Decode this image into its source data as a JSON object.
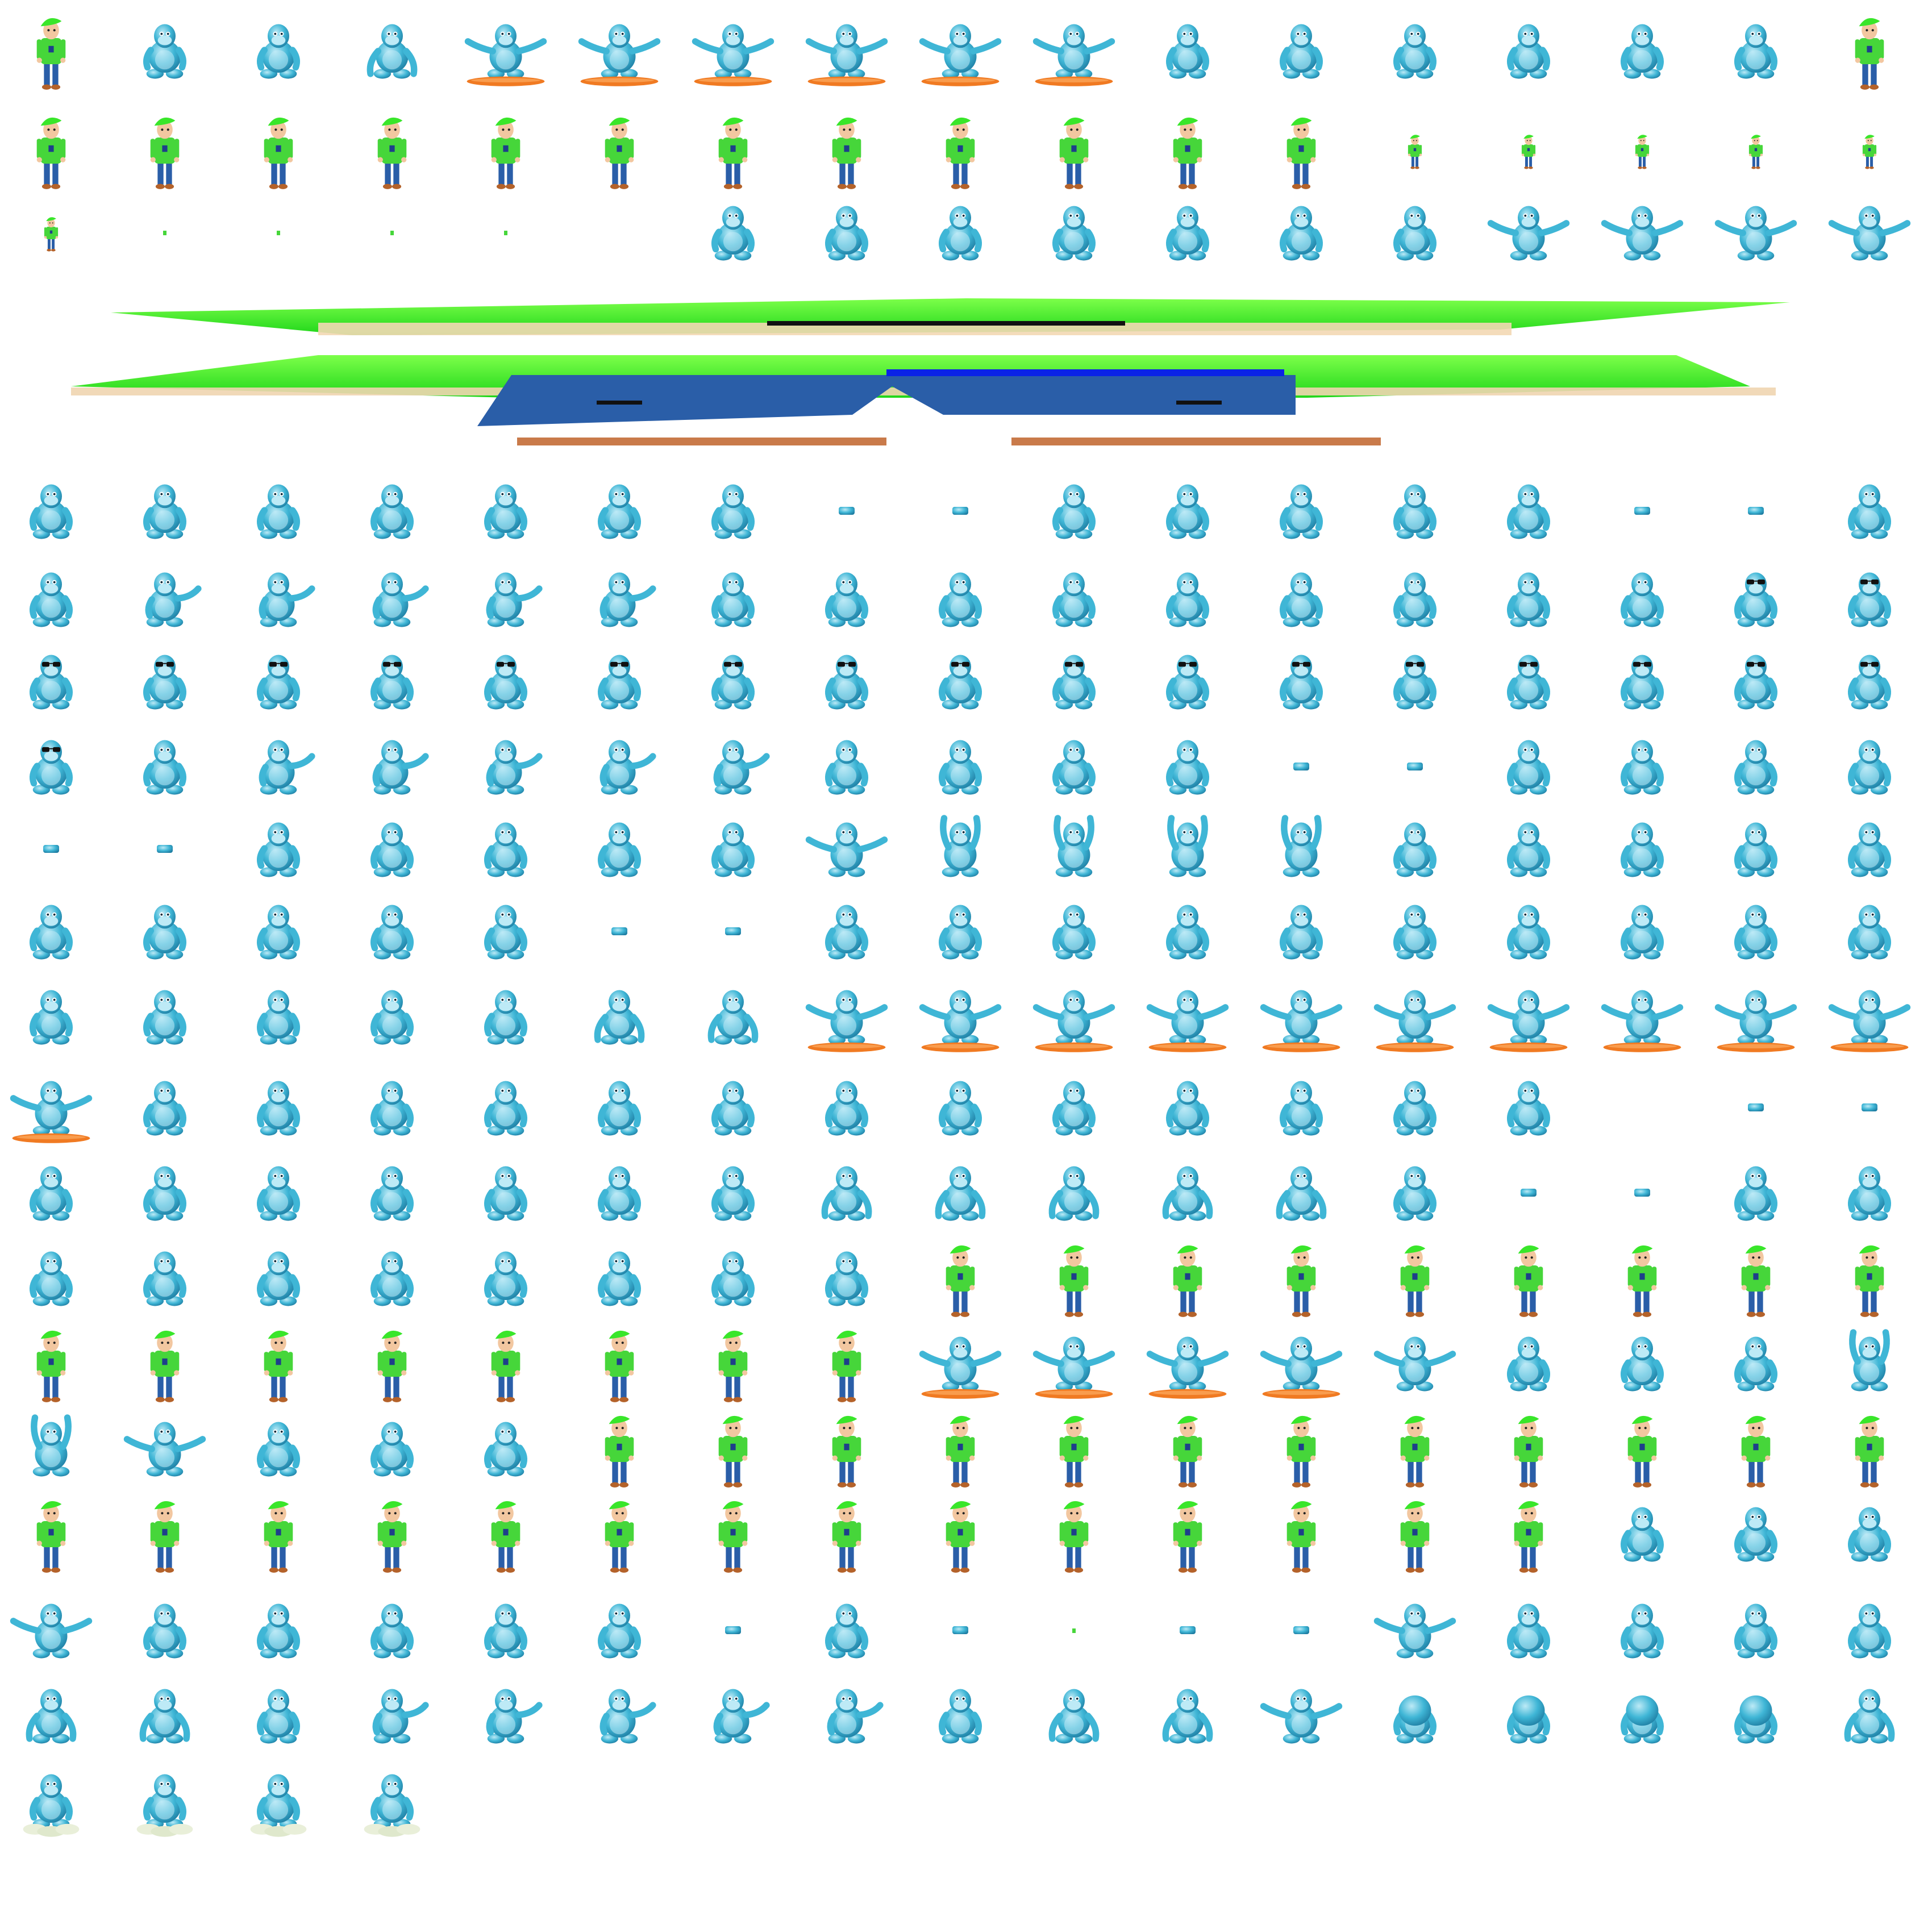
{
  "sheet": {
    "title": "",
    "columns": 17,
    "background": "#ffffff",
    "colors": {
      "ape_body": "#3fb6d6",
      "ape_dark": "#1f7ea3",
      "ape_light": "#bdeaf6",
      "boy_hair": "#39e62a",
      "boy_shirt": "#46d63a",
      "boy_jeans": "#2a5ea8",
      "boy_skin": "#f2c7a0",
      "board": "#f07a22"
    },
    "rows": [
      [
        "boy",
        "ape",
        "ape",
        "ape-crouch",
        "ape-board",
        "ape-board",
        "ape-board",
        "ape-board",
        "ape-board",
        "ape-board",
        "ape",
        "ape",
        "ape",
        "ape",
        "ape",
        "ape",
        "boy"
      ],
      [
        "boy",
        "boy",
        "boy",
        "boy",
        "boy",
        "boy",
        "boy",
        "boy",
        "boy",
        "boy",
        "boy",
        "boy",
        "boy-s",
        "boy-s",
        "boy-s",
        "boy-s",
        "boy-s"
      ],
      [
        "boy-s",
        "dot",
        "dot",
        "dot",
        "dot",
        "",
        "ape",
        "ape",
        "ape",
        "ape",
        "ape",
        "ape",
        "ape",
        "ape-arms",
        "ape-arms",
        "ape-arms",
        "ape-arms"
      ],
      [
        "glitch"
      ],
      [
        "ape",
        "ape",
        "ape",
        "ape",
        "ape",
        "ape",
        "ape",
        "frag",
        "frag",
        "ape",
        "ape",
        "ape",
        "ape",
        "ape",
        "frag",
        "frag",
        "ape"
      ],
      [
        "ape",
        "ape-wave",
        "ape-wave",
        "ape-wave",
        "ape-wave",
        "ape-wave",
        "ape",
        "ape",
        "ape",
        "ape",
        "ape",
        "ape",
        "ape",
        "ape",
        "ape",
        "ape-shades",
        "ape-shades"
      ],
      [
        "ape-shades",
        "ape-shades",
        "ape-shades",
        "ape-shades",
        "ape-shades",
        "ape-shades",
        "ape-shades",
        "ape-shades",
        "ape-shades",
        "ape-shades",
        "ape-shades",
        "ape-shades",
        "ape-shades",
        "ape-shades",
        "ape-shades",
        "ape-shades",
        "ape-shades"
      ],
      [
        "ape-shades",
        "ape",
        "ape-wave",
        "ape-wave",
        "ape-wave",
        "ape-wave",
        "ape-wave",
        "ape",
        "ape",
        "ape",
        "ape",
        "frag",
        "frag",
        "ape",
        "ape",
        "ape",
        "ape"
      ],
      [
        "frag",
        "frag",
        "ape",
        "ape",
        "ape",
        "ape",
        "ape",
        "ape-arms",
        "ape-up",
        "ape-up",
        "ape-up",
        "ape-up",
        "ape",
        "ape",
        "ape",
        "ape",
        "ape"
      ],
      [
        "ape",
        "ape",
        "ape",
        "ape",
        "ape",
        "frag",
        "frag",
        "ape",
        "ape",
        "ape",
        "ape",
        "ape",
        "ape",
        "ape",
        "ape",
        "ape",
        "ape"
      ],
      [
        "ape",
        "ape",
        "ape",
        "ape",
        "ape",
        "ape-crouch",
        "ape-crouch",
        "ape-board",
        "ape-board",
        "ape-board",
        "ape-board",
        "ape-board",
        "ape-board",
        "ape-board",
        "ape-board",
        "ape-board",
        "ape-board"
      ],
      [
        "ape-board",
        "ape",
        "ape",
        "ape",
        "ape",
        "ape",
        "ape",
        "ape",
        "ape",
        "ape",
        "ape",
        "ape",
        "ape",
        "ape",
        "",
        "frag",
        "frag"
      ],
      [
        "ape",
        "ape",
        "ape",
        "ape",
        "ape",
        "ape",
        "ape",
        "ape-crouch",
        "ape-crouch",
        "ape-crouch",
        "ape-crouch",
        "ape-crouch",
        "ape",
        "frag",
        "frag",
        "ape",
        "ape"
      ],
      [
        "ape",
        "ape",
        "ape",
        "ape",
        "ape",
        "ape",
        "ape",
        "ape",
        "boy",
        "boy",
        "boy",
        "boy",
        "boy",
        "boy",
        "boy",
        "boy",
        "boy"
      ],
      [
        "boy",
        "boy",
        "boy",
        "boy",
        "boy",
        "boy",
        "boy",
        "boy",
        "ape-board",
        "ape-board",
        "ape-board",
        "ape-board",
        "ape-arms",
        "ape",
        "ape",
        "ape",
        "ape-up"
      ],
      [
        "ape-up",
        "ape-arms",
        "ape",
        "ape",
        "ape",
        "boy",
        "boy",
        "boy",
        "boy",
        "boy",
        "boy",
        "boy",
        "boy",
        "boy",
        "boy",
        "boy",
        "boy"
      ],
      [
        "boy",
        "boy",
        "boy",
        "boy",
        "boy",
        "boy",
        "boy",
        "boy",
        "boy",
        "boy",
        "boy",
        "boy",
        "boy",
        "boy",
        "ape",
        "ape",
        "ape"
      ],
      [
        "ape-arms",
        "ape",
        "ape",
        "ape",
        "ape",
        "ape",
        "frag",
        "ape",
        "frag",
        "dot",
        "frag",
        "frag",
        "ape-arms",
        "ape",
        "ape",
        "ape",
        "ape"
      ],
      [
        "ape-crouch",
        "ape-crouch",
        "ape",
        "ape-wave",
        "ape-wave",
        "ape-wave",
        "ape-wave",
        "ape-wave",
        "ape",
        "ape-crouch",
        "ape-crouch",
        "ape-arms",
        "ape-ball",
        "ape-ball",
        "ape-ball",
        "ape-ball",
        "ape-crouch"
      ],
      [
        "ape-cloud",
        "ape-cloud",
        "ape-cloud",
        "ape-cloud"
      ]
    ]
  }
}
